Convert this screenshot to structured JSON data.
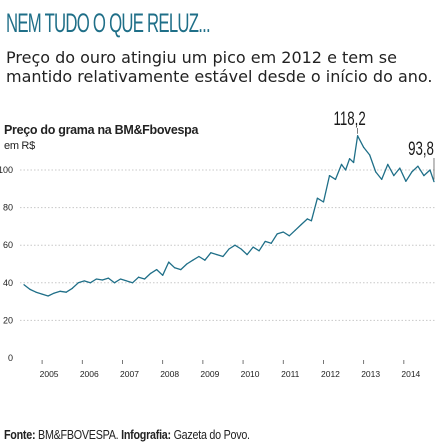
{
  "headline": "NEM TUDO O QUE RELUZ...",
  "subtitle": "Preço do ouro atingiu um pico em 2012 e tem se mantido relativamente estável desde o início do ano.",
  "source": {
    "label": "Fonte:",
    "value": "BM&FBOVESPA.",
    "credit_label": "Infografia:",
    "credit_value": "Gazeta do Povo."
  },
  "colors": {
    "headline": "#1f6f88",
    "line": "#1f6f88",
    "grid": "#c8c8c8"
  },
  "chart_data": {
    "type": "line",
    "title": "Preço do grama na BM&Fbovespa",
    "unit": "em R$",
    "ylim": [
      0,
      125
    ],
    "y_ticks": [
      0,
      20,
      40,
      60,
      80,
      100
    ],
    "xlim": [
      2004.5,
      2014.8
    ],
    "x_ticks": [
      "2005",
      "2006",
      "2007",
      "2008",
      "2009",
      "2010",
      "2011",
      "2012",
      "2013",
      "2014"
    ],
    "grid": true,
    "series": [
      {
        "x": [
          2004.55,
          2004.7,
          2004.85,
          2005.0,
          2005.15,
          2005.3,
          2005.45,
          2005.6,
          2005.75,
          2005.9,
          2006.05,
          2006.2,
          2006.35,
          2006.5,
          2006.65,
          2006.8,
          2006.95,
          2007.1,
          2007.25,
          2007.4,
          2007.55,
          2007.7,
          2007.85,
          2008.0,
          2008.15,
          2008.3,
          2008.45,
          2008.6,
          2008.75,
          2008.9,
          2009.05,
          2009.2,
          2009.35,
          2009.5,
          2009.65,
          2009.8,
          2009.95,
          2010.1,
          2010.25,
          2010.4,
          2010.55,
          2010.7,
          2010.85,
          2011.0,
          2011.15,
          2011.3,
          2011.45,
          2011.6,
          2011.7,
          2011.85,
          2012.0,
          2012.15,
          2012.3,
          2012.45,
          2012.55,
          2012.65,
          2012.75,
          2012.85,
          2013.0,
          2013.15,
          2013.3,
          2013.45,
          2013.6,
          2013.75,
          2013.9,
          2014.05,
          2014.2,
          2014.35,
          2014.5,
          2014.65,
          2014.75
        ],
        "values": [
          39,
          36.5,
          35,
          34,
          33,
          34.5,
          35.5,
          35,
          37,
          40,
          41,
          40,
          42,
          41.5,
          42.5,
          40,
          42,
          41,
          40,
          43,
          42,
          45,
          47,
          44,
          51,
          48,
          47,
          50,
          52,
          54,
          52,
          56,
          55,
          54,
          58,
          60,
          58,
          55,
          59,
          57,
          62,
          61,
          66,
          67,
          65,
          68,
          71,
          74,
          73,
          85,
          83,
          97,
          95,
          103,
          100,
          106,
          104,
          118.2,
          112,
          108,
          99,
          95,
          103,
          97,
          101,
          94,
          99,
          102,
          97,
          100,
          93.8
        ]
      }
    ],
    "annotations": [
      {
        "label": "118,2",
        "x": 2012.85,
        "y": 118.2
      },
      {
        "label": "93,8",
        "x": 2014.75,
        "y": 93.8
      }
    ]
  }
}
